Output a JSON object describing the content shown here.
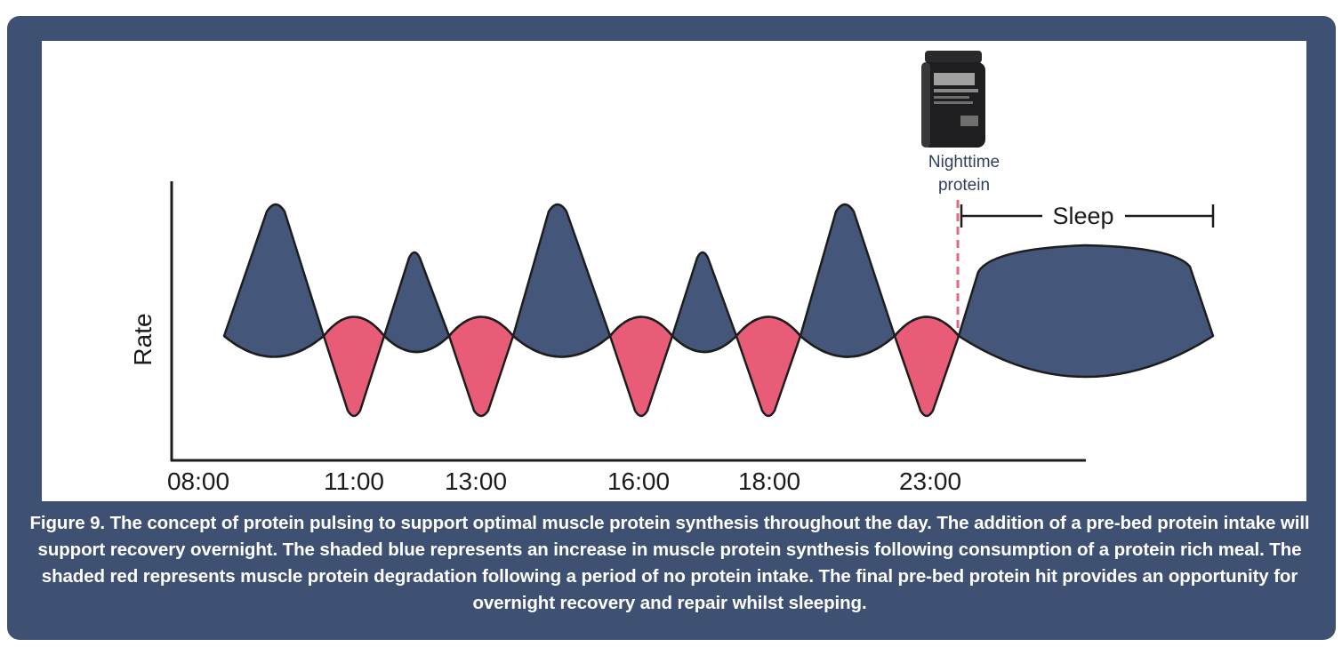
{
  "figure": {
    "y_label": "Rate",
    "x_ticks": [
      "08:00",
      "11:00",
      "13:00",
      "16:00",
      "18:00",
      "23:00"
    ],
    "annotation": [
      "Nighttime",
      "protein"
    ],
    "sleep_label": "Sleep",
    "colors": {
      "synthesis": "#44567a",
      "degradation": "#e85c77",
      "frame": "#3e5172",
      "marker": "#e06a7e"
    },
    "icon": "protein-tub-icon"
  },
  "caption": "Figure 9.  The concept of protein pulsing to support optimal muscle protein synthesis throughout the day. The addition of a pre-bed protein intake will support recovery overnight. The shaded blue represents an increase in muscle protein synthesis following consumption of a protein rich meal. The shaded red represents muscle protein degradation following a period of no protein intake. The final pre-bed protein hit provides an opportunity for overnight recovery and repair whilst sleeping."
}
